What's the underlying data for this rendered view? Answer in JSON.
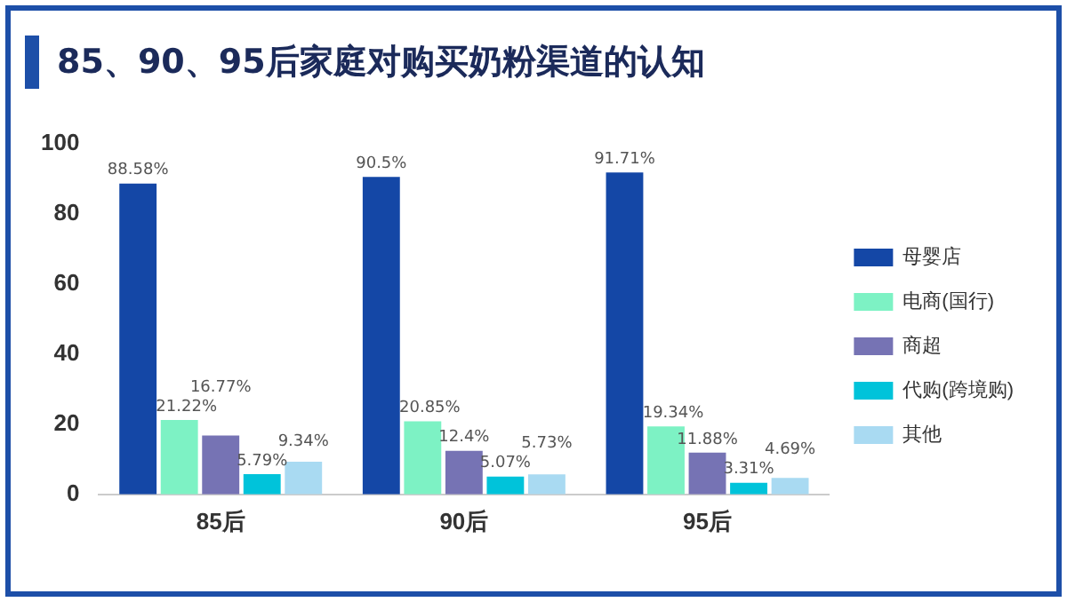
{
  "chart_data": {
    "type": "bar",
    "title": "85、90、95后家庭对购买奶粉渠道的认知",
    "categories": [
      "85后",
      "90后",
      "95后"
    ],
    "series": [
      {
        "name": "母婴店",
        "color": "#1447a6",
        "values": [
          88.58,
          90.5,
          91.71
        ],
        "value_labels": [
          "88.58%",
          "90.5%",
          "91.71%"
        ]
      },
      {
        "name": "电商(国行)",
        "color": "#7df2c4",
        "values": [
          21.22,
          20.85,
          19.34
        ],
        "value_labels": [
          "21.22%",
          "20.85%",
          "19.34%"
        ]
      },
      {
        "name": "商超",
        "color": "#7673b4",
        "values": [
          16.77,
          12.4,
          11.88
        ],
        "value_labels": [
          "16.77%",
          "12.4%",
          "11.88%"
        ]
      },
      {
        "name": "代购(跨境购)",
        "color": "#00c3da",
        "values": [
          5.79,
          5.07,
          3.31
        ],
        "value_labels": [
          "5.79%",
          "5.07%",
          "3.31%"
        ]
      },
      {
        "name": "其他",
        "color": "#a9daf2",
        "values": [
          9.34,
          5.73,
          4.69
        ],
        "value_labels": [
          "9.34%",
          "5.73%",
          "4.69%"
        ]
      }
    ],
    "ylim": [
      0,
      100
    ],
    "yticks": [
      0,
      20,
      40,
      60,
      80,
      100
    ],
    "grid": false,
    "legend": "right"
  }
}
